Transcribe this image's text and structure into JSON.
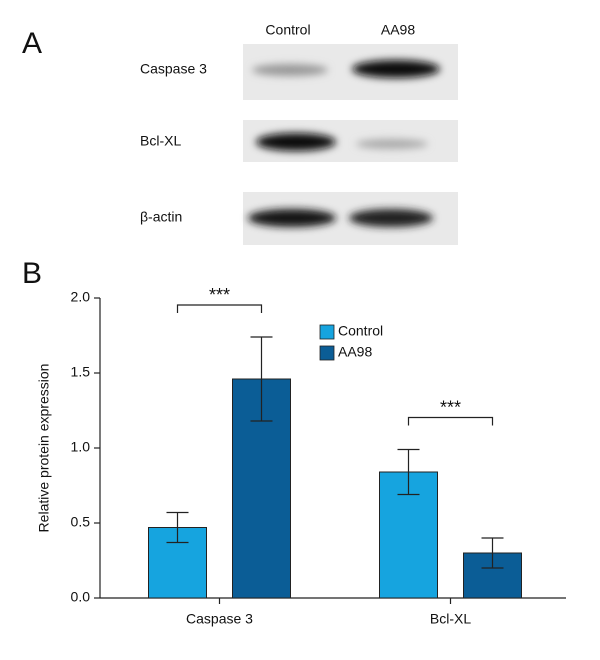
{
  "panel_a": {
    "label": "A",
    "columns": [
      "Control",
      "AA98"
    ],
    "rows": [
      "Caspase 3",
      "Bcl-XL",
      "β-actin"
    ]
  },
  "panel_b_label": "B",
  "chart_data": {
    "type": "bar",
    "ylabel": "Relative protein expression",
    "categories": [
      "Caspase 3",
      "Bcl-XL"
    ],
    "series": [
      {
        "name": "Control",
        "color": "#16a4df",
        "values": [
          0.47,
          0.84
        ],
        "errors": [
          0.1,
          0.15
        ]
      },
      {
        "name": "AA98",
        "color": "#0b5d96",
        "values": [
          1.46,
          0.3
        ],
        "errors": [
          0.28,
          0.1
        ]
      }
    ],
    "significance": [
      "***",
      "***"
    ],
    "ylim": [
      0,
      2
    ],
    "yticks": [
      {
        "value": 0,
        "label": "0.0"
      },
      {
        "value": 0.5,
        "label": "0.5"
      },
      {
        "value": 1,
        "label": "1.0"
      },
      {
        "value": 1.5,
        "label": "1.5"
      },
      {
        "value": 2,
        "label": "2.0"
      }
    ],
    "legend": "upper right"
  }
}
